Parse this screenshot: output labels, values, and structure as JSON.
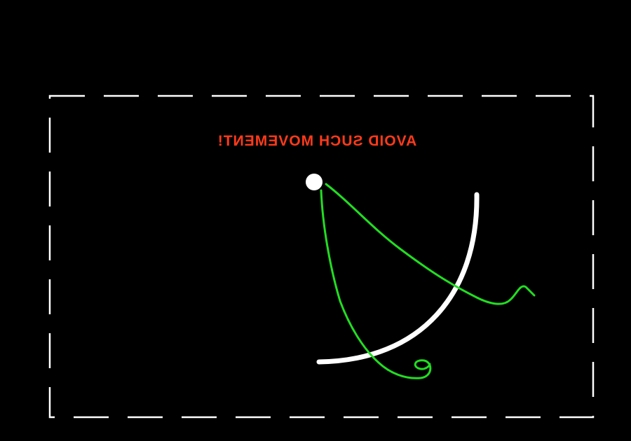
{
  "warning": {
    "text": "AVOID SUCH MOVEMENT!",
    "mirrored": true,
    "color": "#ff3a1a"
  },
  "colors": {
    "background": "#000000",
    "frame": "#ffffff",
    "arc": "#ffffff",
    "start_dot": "#ffffff",
    "path": "#22dd22"
  },
  "frame": {
    "style": "dashed"
  }
}
